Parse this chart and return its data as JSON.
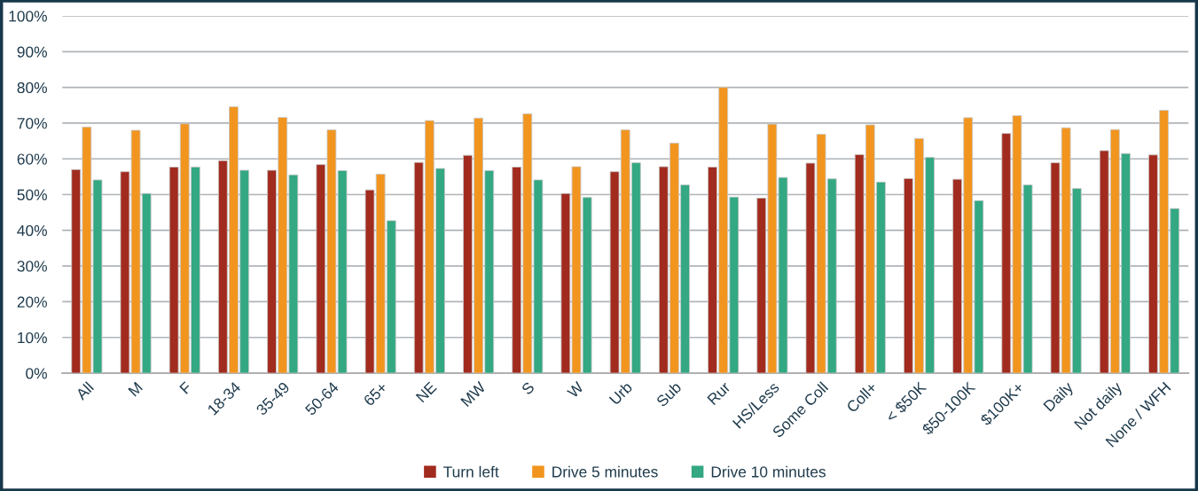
{
  "chart_data": {
    "type": "bar",
    "categories": [
      "All",
      "M",
      "F",
      "18-34",
      "35-49",
      "50-64",
      "65+",
      "NE",
      "MW",
      "S",
      "W",
      "Urb",
      "Sub",
      "Rur",
      "HS/Less",
      "Some Coll",
      "Coll+",
      "< $50K",
      "$50-100K",
      "$100K+",
      "Daily",
      "Not daily",
      "None / WFH"
    ],
    "series": [
      {
        "name": "Turn left",
        "color": "#a12b1e",
        "values": [
          57.0,
          56.4,
          57.7,
          59.5,
          56.8,
          58.4,
          51.3,
          59.0,
          61.0,
          57.7,
          50.3,
          56.4,
          57.8,
          57.7,
          49.0,
          58.8,
          61.2,
          54.5,
          54.3,
          67.1,
          58.9,
          62.3,
          61.1
        ]
      },
      {
        "name": "Drive 5 minutes",
        "color": "#f2951e",
        "values": [
          68.9,
          68.0,
          69.8,
          74.6,
          71.6,
          68.1,
          55.7,
          70.7,
          71.4,
          72.6,
          57.8,
          68.1,
          64.4,
          80.0,
          69.7,
          66.9,
          69.5,
          65.7,
          71.5,
          72.1,
          68.7,
          68.2,
          73.6
        ]
      },
      {
        "name": "Drive 10 minutes",
        "color": "#33a882",
        "values": [
          54.1,
          50.3,
          57.7,
          56.8,
          55.5,
          56.7,
          42.7,
          57.3,
          56.7,
          54.1,
          49.2,
          58.9,
          52.7,
          49.3,
          54.8,
          54.4,
          53.5,
          60.4,
          48.3,
          52.7,
          51.7,
          61.5,
          46.1
        ]
      }
    ],
    "ylim": [
      0,
      100
    ],
    "yticks": [
      {
        "value": 0,
        "label": "0%"
      },
      {
        "value": 10,
        "label": "10%"
      },
      {
        "value": 20,
        "label": "20%"
      },
      {
        "value": 30,
        "label": "30%"
      },
      {
        "value": 40,
        "label": "40%"
      },
      {
        "value": 50,
        "label": "50%"
      },
      {
        "value": 60,
        "label": "60%"
      },
      {
        "value": 70,
        "label": "70%"
      },
      {
        "value": 80,
        "label": "80%"
      },
      {
        "value": 90,
        "label": "90%"
      },
      {
        "value": 100,
        "label": "100%"
      }
    ],
    "grid": "y",
    "legend": "bottom"
  }
}
